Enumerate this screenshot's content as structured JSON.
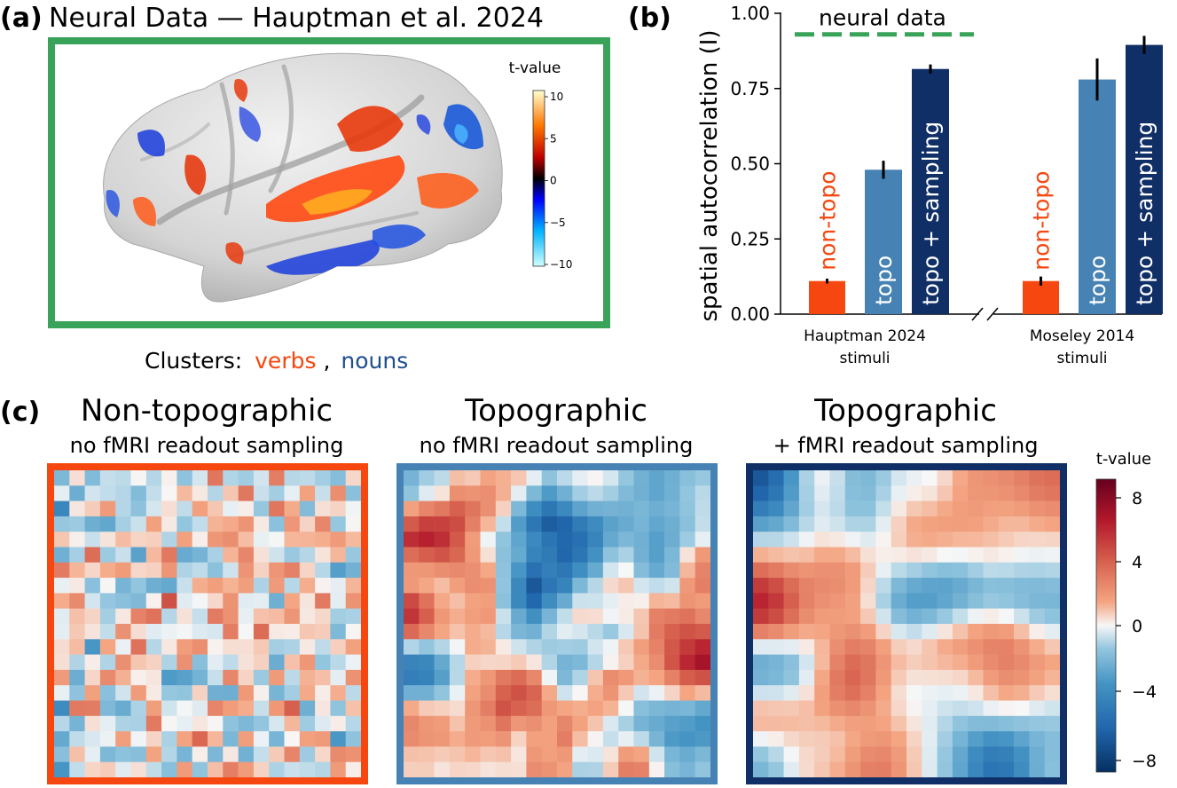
{
  "panel_a": {
    "label": "(a)",
    "title": "Neural Data — Hauptman et al. 2024",
    "colorbar_title": "t-value",
    "colorbar_ticks": [
      "10",
      "5",
      "0",
      "−5",
      "−10"
    ],
    "clusters_prefix": "Clusters:",
    "verbs_label": "verbs",
    "nouns_label": "nouns",
    "separator": ",",
    "frame_color": "#3aa35a",
    "verbs_color": "#f5470f",
    "nouns_color": "#1f4e8c"
  },
  "panel_b": {
    "label": "(b)",
    "neural_data_label": "neural data",
    "colors": {
      "non_topo": "#f5470f",
      "topo": "#4682b4",
      "topo_sampling": "#0f2f66",
      "neural": "#3aa35a"
    },
    "chart_data": {
      "type": "bar",
      "ylabel": "spatial autocorrelation (I)",
      "ylim": [
        0,
        1.0
      ],
      "yticks": [
        "0.00",
        "0.25",
        "0.50",
        "0.75",
        "1.00"
      ],
      "neural_data_value": 0.93,
      "groups": [
        {
          "label_line1": "Hauptman 2024",
          "label_line2": "stimuli",
          "bars": [
            {
              "name": "non-topo",
              "value": 0.11,
              "err": 0.008
            },
            {
              "name": "topo",
              "value": 0.48,
              "err": 0.03
            },
            {
              "name": "topo + sampling",
              "value": 0.815,
              "err": 0.015
            }
          ]
        },
        {
          "label_line1": "Moseley 2014",
          "label_line2": "stimuli",
          "bars": [
            {
              "name": "non-topo",
              "value": 0.11,
              "err": 0.015
            },
            {
              "name": "topo",
              "value": 0.78,
              "err": 0.07
            },
            {
              "name": "topo + sampling",
              "value": 0.895,
              "err": 0.03
            }
          ]
        }
      ]
    }
  },
  "panel_c": {
    "label": "(c)",
    "maps": [
      {
        "title": "Non-topographic",
        "subtitle": "no fMRI readout sampling",
        "frame_color": "#f5470f",
        "smoothness": 0,
        "seed": 11
      },
      {
        "title": "Topographic",
        "subtitle": "no fMRI readout sampling",
        "frame_color": "#4682b4",
        "smoothness": 1,
        "seed": 23
      },
      {
        "title": "Topographic",
        "subtitle": "+ fMRI readout sampling",
        "frame_color": "#0f2f66",
        "smoothness": 2,
        "seed": 37
      }
    ],
    "colorbar_title": "t-value",
    "colorbar_ticks": [
      "8",
      "4",
      "0",
      "−4",
      "−8"
    ],
    "chart_data": {
      "type": "heatmap",
      "grid": [
        20,
        20
      ],
      "colorbar_range": [
        -9,
        9
      ],
      "colormap": "RdBu_r"
    }
  }
}
